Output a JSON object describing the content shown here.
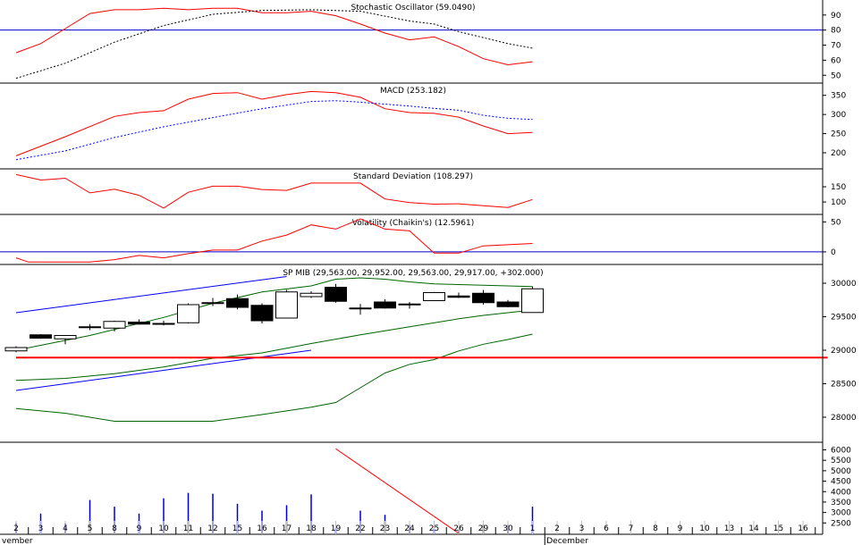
{
  "chart_data": [
    {
      "type": "line",
      "title": "Stochastic Oscillator (59.0490)",
      "y_ticks": [
        50,
        60,
        70,
        80,
        90
      ],
      "ylim": [
        46,
        97
      ],
      "reference_line": 80,
      "series": [
        {
          "style": "solid",
          "color": "#ff0000",
          "x": [
            0,
            1,
            2,
            3,
            4,
            5,
            6,
            7,
            8,
            9,
            10,
            11,
            12,
            13,
            14,
            15,
            16,
            17,
            18,
            19,
            20,
            21
          ],
          "values": [
            65,
            71,
            81,
            91,
            93.5,
            93.5,
            94.5,
            93.5,
            94.5,
            94.5,
            91.5,
            91.5,
            92.5,
            89.5,
            84,
            78,
            73.5,
            75.5,
            69,
            61,
            57,
            59
          ]
        },
        {
          "style": "dotted",
          "color": "#000000",
          "x": [
            0,
            2,
            4,
            6,
            8,
            10,
            12,
            14,
            16,
            17,
            18,
            19,
            20,
            21
          ],
          "values": [
            48,
            58,
            72,
            83,
            90.5,
            93,
            93.5,
            92.5,
            86,
            84,
            79,
            75,
            71,
            68
          ]
        }
      ]
    },
    {
      "type": "line",
      "title": "MACD (253.182)",
      "y_ticks": [
        200,
        250,
        300,
        350
      ],
      "ylim": [
        165,
        375
      ],
      "series": [
        {
          "style": "solid",
          "color": "#ff0000",
          "x": [
            0,
            2,
            4,
            5,
            6,
            7,
            8,
            9,
            10,
            11,
            12,
            13,
            14,
            15,
            16,
            17,
            18,
            19,
            20,
            21
          ],
          "values": [
            192,
            242,
            295,
            305,
            310,
            340,
            355,
            357,
            340,
            352,
            360,
            357,
            345,
            315,
            305,
            303,
            293,
            270,
            250,
            253
          ]
        },
        {
          "style": "dotted",
          "color": "#0000ff",
          "x": [
            0,
            2,
            4,
            6,
            8,
            10,
            12,
            13,
            14,
            16,
            17,
            18,
            19,
            20,
            21
          ],
          "values": [
            182,
            205,
            240,
            268,
            292,
            315,
            334,
            336,
            332,
            322,
            316,
            311,
            298,
            290,
            287
          ]
        }
      ]
    },
    {
      "type": "line",
      "title": "Standard Deviation (108.297)",
      "y_ticks": [
        100,
        150
      ],
      "ylim": [
        65,
        200
      ],
      "series": [
        {
          "style": "solid",
          "color": "#ff0000",
          "x": [
            0,
            1,
            2,
            3,
            4,
            5,
            6,
            7,
            8,
            9,
            10,
            11,
            12,
            13,
            14,
            15,
            16,
            17,
            18,
            19,
            20,
            21
          ],
          "values": [
            190,
            172,
            178,
            130,
            142,
            122,
            80,
            132,
            152,
            152,
            141,
            138,
            162,
            162,
            162,
            110,
            98,
            93,
            94,
            88,
            82,
            108
          ]
        }
      ]
    },
    {
      "type": "line",
      "title": "Volatility (Chaikin's) (12.5961)",
      "y_ticks": [
        0,
        50
      ],
      "ylim": [
        -18,
        58
      ],
      "reference_line": 0,
      "series": [
        {
          "style": "solid",
          "color": "#ff0000",
          "x": [
            0,
            0.5,
            1,
            2,
            3,
            4,
            5,
            6,
            7,
            8,
            9,
            10,
            11,
            12,
            13,
            14,
            15,
            16,
            17,
            18,
            19,
            20,
            21
          ],
          "values": [
            -10,
            -17,
            -17,
            -17,
            -17,
            -13,
            -6,
            -10,
            -3,
            3,
            3,
            18,
            28,
            45,
            38,
            55,
            38,
            35,
            -2,
            -2,
            10,
            12,
            14
          ]
        }
      ]
    },
    {
      "type": "candlestick",
      "title": "SP MIB (29,563.00, 29,952.00, 29,563.00, 29,917.00, +302.000)",
      "y_ticks": [
        28000,
        28500,
        29000,
        29500,
        30000
      ],
      "ylim": [
        27640,
        30240
      ],
      "candles": [
        {
          "o": 28990,
          "h": 29060,
          "l": 28970,
          "c": 29040
        },
        {
          "o": 29230,
          "h": 29240,
          "l": 29170,
          "c": 29180
        },
        {
          "o": 29170,
          "h": 29220,
          "l": 29090,
          "c": 29220
        },
        {
          "o": 29340,
          "h": 29390,
          "l": 29300,
          "c": 29350
        },
        {
          "o": 29330,
          "h": 29440,
          "l": 29280,
          "c": 29430
        },
        {
          "o": 29420,
          "h": 29460,
          "l": 29380,
          "c": 29390
        },
        {
          "o": 29400,
          "h": 29440,
          "l": 29370,
          "c": 29400
        },
        {
          "o": 29410,
          "h": 29700,
          "l": 29400,
          "c": 29680
        },
        {
          "o": 29710,
          "h": 29780,
          "l": 29660,
          "c": 29710
        },
        {
          "o": 29770,
          "h": 29830,
          "l": 29610,
          "c": 29640
        },
        {
          "o": 29670,
          "h": 29700,
          "l": 29400,
          "c": 29440
        },
        {
          "o": 29480,
          "h": 29900,
          "l": 29480,
          "c": 29870
        },
        {
          "o": 29800,
          "h": 29880,
          "l": 29780,
          "c": 29850
        },
        {
          "o": 29940,
          "h": 29990,
          "l": 29710,
          "c": 29730
        },
        {
          "o": 29630,
          "h": 29690,
          "l": 29530,
          "c": 29630
        },
        {
          "o": 29720,
          "h": 29760,
          "l": 29620,
          "c": 29630
        },
        {
          "o": 29680,
          "h": 29720,
          "l": 29620,
          "c": 29690
        },
        {
          "o": 29740,
          "h": 29870,
          "l": 29740,
          "c": 29860
        },
        {
          "o": 29810,
          "h": 29860,
          "l": 29780,
          "c": 29790
        },
        {
          "o": 29850,
          "h": 29900,
          "l": 29680,
          "c": 29710
        },
        {
          "o": 29720,
          "h": 29750,
          "l": 29640,
          "c": 29650
        },
        {
          "o": 29563,
          "h": 29952,
          "l": 29563,
          "c": 29917
        }
      ],
      "overlays": [
        {
          "name": "",
          "color": "#006400",
          "x": [
            0,
            3,
            6,
            8,
            10,
            12,
            13,
            14,
            15,
            16,
            17,
            18,
            19,
            20,
            21
          ],
          "values": [
            29000,
            29220,
            29490,
            29700,
            29870,
            29960,
            30060,
            30080,
            30060,
            30020,
            29990,
            29980,
            29970,
            29960,
            29950
          ]
        },
        {
          "name": "",
          "color": "#006400",
          "x": [
            0,
            2,
            4,
            6,
            8,
            10,
            12,
            14,
            16,
            18,
            19,
            20,
            21
          ],
          "values": [
            28550,
            28580,
            28650,
            28750,
            28880,
            28960,
            29100,
            29230,
            29350,
            29470,
            29520,
            29560,
            29600
          ]
        },
        {
          "name": "",
          "color": "#006400",
          "x": [
            0,
            2,
            4,
            6,
            8,
            10,
            12,
            13,
            14,
            15,
            16,
            17,
            18,
            19,
            20,
            21
          ],
          "values": [
            28130,
            28060,
            27940,
            27940,
            27940,
            28040,
            28150,
            28220,
            28440,
            28660,
            28790,
            28860,
            28990,
            29090,
            29160,
            29240
          ]
        },
        {
          "name": "",
          "color": "#0000ff",
          "x": [
            0,
            11
          ],
          "values": [
            29560,
            30100
          ]
        },
        {
          "name": "",
          "color": "#0000ff",
          "x": [
            0,
            12
          ],
          "values": [
            28400,
            29000
          ]
        },
        {
          "name": "",
          "color": "#ff0000",
          "x": [
            0,
            33
          ],
          "values": [
            28890,
            28890
          ],
          "width": 2
        }
      ]
    },
    {
      "type": "bar",
      "title": "",
      "y_ticks": [
        2500,
        3000,
        3500,
        4000,
        4500,
        5000,
        5500,
        6000
      ],
      "ylim": [
        2000,
        6150
      ],
      "values": [
        2500,
        2950,
        2480,
        3600,
        3280,
        2950,
        3680,
        3940,
        3900,
        3420,
        3090,
        3350,
        3870,
        2250,
        3090,
        2890,
        2400,
        2220,
        2180,
        2430,
        2410,
        3280
      ],
      "trendline": {
        "color": "#ff0000",
        "x": [
          13,
          18
        ],
        "values": [
          6050,
          2000
        ]
      }
    }
  ],
  "x_axis": {
    "month_labels": [
      {
        "index": 0,
        "text": "vember"
      },
      {
        "index": 22,
        "text": "December"
      }
    ],
    "day_labels": [
      "2",
      "3",
      "4",
      "5",
      "8",
      "9",
      "10",
      "11",
      "12",
      "15",
      "16",
      "17",
      "18",
      "19",
      "22",
      "23",
      "24",
      "25",
      "26",
      "29",
      "30",
      "1",
      "2",
      "3",
      "6",
      "7",
      "8",
      "9",
      "10",
      "13",
      "14",
      "15",
      "16"
    ]
  },
  "colors": {
    "axis": "#000000",
    "grid_marker": "#bfbfbf"
  }
}
